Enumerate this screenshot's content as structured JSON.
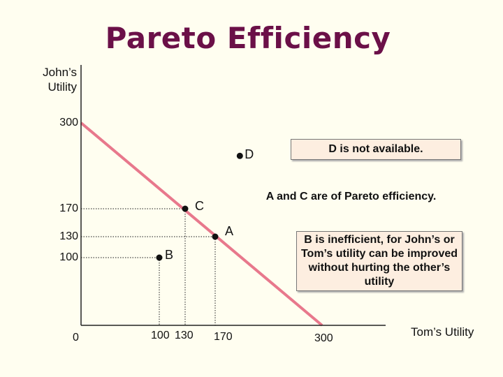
{
  "title": "Pareto Efficiency",
  "chart_data": {
    "type": "line",
    "xlabel": "Tom’s Utility",
    "ylabel": "John’s Utility",
    "xlim": [
      0,
      400
    ],
    "ylim": [
      0,
      300
    ],
    "x_ticks": [
      {
        "label": "0",
        "value": 0
      },
      {
        "label": "100",
        "value": 100
      },
      {
        "label": "130",
        "value": 130
      },
      {
        "label": "170",
        "value": 170
      },
      {
        "label": "300",
        "value": 300
      }
    ],
    "y_ticks": [
      {
        "label": "300",
        "value": 300
      },
      {
        "label": "170",
        "value": 170
      },
      {
        "label": "130",
        "value": 130
      },
      {
        "label": "100",
        "value": 100
      }
    ],
    "frontier": {
      "x": [
        0,
        300
      ],
      "y": [
        300,
        0
      ],
      "color": "#e8788c"
    },
    "points": [
      {
        "name": "D",
        "x": 200,
        "y": 250
      },
      {
        "name": "C",
        "x": 130,
        "y": 170
      },
      {
        "name": "A",
        "x": 170,
        "y": 130
      },
      {
        "name": "B",
        "x": 100,
        "y": 100
      }
    ],
    "annotations": [
      "D is not available.",
      "A and C are of Pareto efficiency.",
      "B is inefficient, for John’s or Tom’s utility can be improved without hurting the other’s utility"
    ]
  }
}
